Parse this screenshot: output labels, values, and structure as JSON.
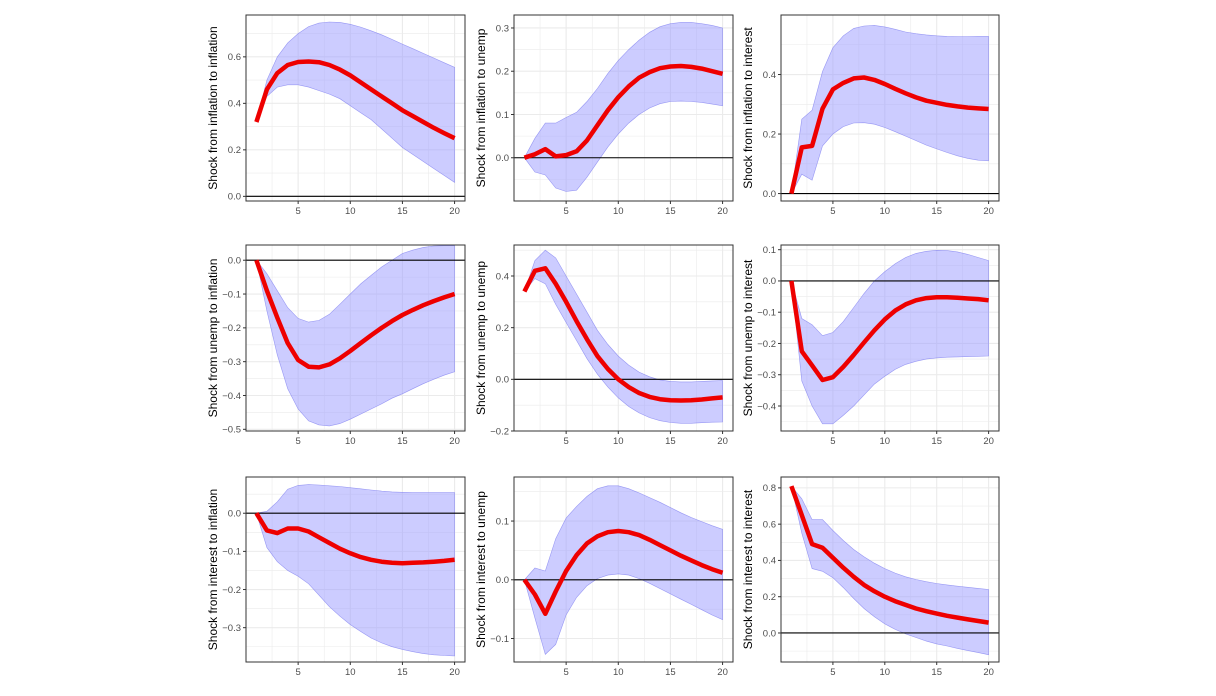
{
  "colors": {
    "line": "#ee0000",
    "band_fill": "#9999ff",
    "band_stroke": "#7777ee",
    "zero_line": "#000000",
    "grid": "#ebebeb",
    "frame": "#333333"
  },
  "chart_data": [
    {
      "type": "line",
      "title": "",
      "xlabel": "",
      "ylabel": "Shock from  inflation  to inflation",
      "xlim": [
        0,
        21
      ],
      "ylim": [
        -0.02,
        0.78
      ],
      "xticks": [
        5,
        10,
        15,
        20
      ],
      "yticks": [
        0.0,
        0.2,
        0.4,
        0.6
      ],
      "ytick_labels": [
        "0.0",
        "0.2",
        "0.4",
        "0.6"
      ],
      "x": [
        1,
        2,
        3,
        4,
        5,
        6,
        7,
        8,
        9,
        10,
        11,
        12,
        13,
        14,
        15,
        16,
        17,
        18,
        19,
        20
      ],
      "series": [
        {
          "name": "irf",
          "values": [
            0.32,
            0.46,
            0.53,
            0.565,
            0.578,
            0.58,
            0.577,
            0.565,
            0.545,
            0.52,
            0.49,
            0.46,
            0.43,
            0.4,
            0.37,
            0.345,
            0.32,
            0.295,
            0.272,
            0.25
          ]
        },
        {
          "name": "upper",
          "values": [
            0.32,
            0.5,
            0.6,
            0.66,
            0.7,
            0.73,
            0.745,
            0.75,
            0.748,
            0.74,
            0.728,
            0.712,
            0.695,
            0.675,
            0.655,
            0.635,
            0.615,
            0.595,
            0.575,
            0.555
          ]
        },
        {
          "name": "lower",
          "values": [
            0.32,
            0.43,
            0.47,
            0.48,
            0.48,
            0.47,
            0.455,
            0.44,
            0.42,
            0.39,
            0.36,
            0.33,
            0.29,
            0.25,
            0.21,
            0.18,
            0.15,
            0.12,
            0.09,
            0.06
          ]
        }
      ]
    },
    {
      "type": "line",
      "xlabel": "",
      "ylabel": "Shock from  inflation  to unemp",
      "xlim": [
        0,
        21
      ],
      "ylim": [
        -0.1,
        0.33
      ],
      "xticks": [
        5,
        10,
        15,
        20
      ],
      "yticks": [
        0.0,
        0.1,
        0.2,
        0.3
      ],
      "ytick_labels": [
        "0.0",
        "0.1",
        "0.2",
        "0.3"
      ],
      "x": [
        1,
        2,
        3,
        4,
        5,
        6,
        7,
        8,
        9,
        10,
        11,
        12,
        13,
        14,
        15,
        16,
        17,
        18,
        19,
        20
      ],
      "series": [
        {
          "name": "irf",
          "values": [
            0.0,
            0.008,
            0.02,
            0.003,
            0.006,
            0.015,
            0.04,
            0.075,
            0.11,
            0.14,
            0.165,
            0.185,
            0.198,
            0.207,
            0.211,
            0.212,
            0.21,
            0.206,
            0.2,
            0.194
          ]
        },
        {
          "name": "upper",
          "values": [
            0.0,
            0.045,
            0.08,
            0.08,
            0.093,
            0.105,
            0.13,
            0.16,
            0.195,
            0.225,
            0.25,
            0.272,
            0.29,
            0.303,
            0.31,
            0.313,
            0.313,
            0.31,
            0.306,
            0.3
          ]
        },
        {
          "name": "lower",
          "values": [
            0.0,
            -0.033,
            -0.04,
            -0.07,
            -0.078,
            -0.075,
            -0.045,
            -0.01,
            0.025,
            0.055,
            0.08,
            0.1,
            0.115,
            0.125,
            0.13,
            0.131,
            0.13,
            0.128,
            0.124,
            0.12
          ]
        }
      ]
    },
    {
      "type": "line",
      "xlabel": "",
      "ylabel": "Shock from  inflation  to interest",
      "xlim": [
        0,
        21
      ],
      "ylim": [
        -0.025,
        0.6
      ],
      "xticks": [
        5,
        10,
        15,
        20
      ],
      "yticks": [
        0.0,
        0.2,
        0.4
      ],
      "ytick_labels": [
        "0.0",
        "0.2",
        "0.4"
      ],
      "x": [
        1,
        2,
        3,
        4,
        5,
        6,
        7,
        8,
        9,
        10,
        11,
        12,
        13,
        14,
        15,
        16,
        17,
        18,
        19,
        20
      ],
      "series": [
        {
          "name": "irf",
          "values": [
            0.0,
            0.155,
            0.16,
            0.285,
            0.35,
            0.372,
            0.387,
            0.39,
            0.382,
            0.368,
            0.352,
            0.337,
            0.323,
            0.312,
            0.305,
            0.298,
            0.293,
            0.289,
            0.286,
            0.284
          ]
        },
        {
          "name": "upper",
          "values": [
            0.0,
            0.25,
            0.28,
            0.41,
            0.49,
            0.53,
            0.555,
            0.563,
            0.565,
            0.56,
            0.552,
            0.543,
            0.537,
            0.533,
            0.53,
            0.528,
            0.527,
            0.527,
            0.528,
            0.528
          ]
        },
        {
          "name": "lower",
          "values": [
            0.0,
            0.065,
            0.045,
            0.16,
            0.2,
            0.225,
            0.237,
            0.238,
            0.233,
            0.222,
            0.208,
            0.193,
            0.178,
            0.163,
            0.15,
            0.138,
            0.127,
            0.118,
            0.112,
            0.11
          ]
        }
      ]
    },
    {
      "type": "line",
      "xlabel": "",
      "ylabel": "Shock from  unemp  to inflation",
      "xlim": [
        0,
        21
      ],
      "ylim": [
        -0.505,
        0.045
      ],
      "xticks": [
        5,
        10,
        15,
        20
      ],
      "yticks": [
        -0.5,
        -0.4,
        -0.3,
        -0.2,
        -0.1,
        0.0
      ],
      "ytick_labels": [
        "-0.5",
        "-0.4",
        "-0.3",
        "-0.2",
        "-0.1",
        "0.0"
      ],
      "x": [
        1,
        2,
        3,
        4,
        5,
        6,
        7,
        8,
        9,
        10,
        11,
        12,
        13,
        14,
        15,
        16,
        17,
        18,
        19,
        20
      ],
      "series": [
        {
          "name": "irf",
          "values": [
            0.0,
            -0.09,
            -0.17,
            -0.245,
            -0.295,
            -0.315,
            -0.317,
            -0.308,
            -0.29,
            -0.268,
            -0.245,
            -0.222,
            -0.2,
            -0.18,
            -0.162,
            -0.147,
            -0.133,
            -0.121,
            -0.11,
            -0.1
          ]
        },
        {
          "name": "upper",
          "values": [
            0.0,
            -0.04,
            -0.09,
            -0.14,
            -0.172,
            -0.183,
            -0.178,
            -0.16,
            -0.13,
            -0.1,
            -0.07,
            -0.045,
            -0.02,
            0.0,
            0.02,
            0.03,
            0.038,
            0.042,
            0.043,
            0.043
          ]
        },
        {
          "name": "lower",
          "values": [
            0.0,
            -0.15,
            -0.28,
            -0.38,
            -0.44,
            -0.475,
            -0.487,
            -0.49,
            -0.483,
            -0.47,
            -0.455,
            -0.44,
            -0.425,
            -0.408,
            -0.395,
            -0.38,
            -0.365,
            -0.352,
            -0.34,
            -0.33
          ]
        }
      ]
    },
    {
      "type": "line",
      "xlabel": "",
      "ylabel": "Shock from  unemp  to unemp",
      "xlim": [
        0,
        21
      ],
      "ylim": [
        -0.2,
        0.52
      ],
      "xticks": [
        5,
        10,
        15,
        20
      ],
      "yticks": [
        -0.2,
        0.0,
        0.2,
        0.4
      ],
      "ytick_labels": [
        "-0.2",
        "0.0",
        "0.2",
        "0.4"
      ],
      "x": [
        1,
        2,
        3,
        4,
        5,
        6,
        7,
        8,
        9,
        10,
        11,
        12,
        13,
        14,
        15,
        16,
        17,
        18,
        19,
        20
      ],
      "series": [
        {
          "name": "irf",
          "values": [
            0.34,
            0.42,
            0.43,
            0.37,
            0.3,
            0.225,
            0.155,
            0.09,
            0.04,
            0.0,
            -0.03,
            -0.053,
            -0.068,
            -0.077,
            -0.081,
            -0.082,
            -0.081,
            -0.078,
            -0.074,
            -0.07
          ]
        },
        {
          "name": "upper",
          "values": [
            0.34,
            0.46,
            0.5,
            0.47,
            0.4,
            0.33,
            0.26,
            0.19,
            0.135,
            0.09,
            0.055,
            0.028,
            0.01,
            -0.002,
            -0.008,
            -0.01,
            -0.01,
            -0.008,
            -0.006,
            -0.005
          ]
        },
        {
          "name": "lower",
          "values": [
            0.34,
            0.39,
            0.37,
            0.29,
            0.22,
            0.15,
            0.08,
            0.02,
            -0.03,
            -0.072,
            -0.105,
            -0.13,
            -0.148,
            -0.16,
            -0.167,
            -0.17,
            -0.17,
            -0.168,
            -0.166,
            -0.165
          ]
        }
      ]
    },
    {
      "type": "line",
      "xlabel": "",
      "ylabel": "Shock from  unemp  to interest",
      "xlim": [
        0,
        21
      ],
      "ylim": [
        -0.48,
        0.115
      ],
      "xticks": [
        5,
        10,
        15,
        20
      ],
      "yticks": [
        -0.4,
        -0.3,
        -0.2,
        -0.1,
        0.0,
        0.1
      ],
      "ytick_labels": [
        "-0.4",
        "-0.3",
        "-0.2",
        "-0.1",
        "0.0",
        "0.1"
      ],
      "x": [
        1,
        2,
        3,
        4,
        5,
        6,
        7,
        8,
        9,
        10,
        11,
        12,
        13,
        14,
        15,
        16,
        17,
        18,
        19,
        20
      ],
      "series": [
        {
          "name": "irf",
          "values": [
            0.0,
            -0.225,
            -0.27,
            -0.317,
            -0.308,
            -0.275,
            -0.237,
            -0.197,
            -0.158,
            -0.123,
            -0.095,
            -0.075,
            -0.062,
            -0.055,
            -0.052,
            -0.052,
            -0.054,
            -0.056,
            -0.058,
            -0.062
          ]
        },
        {
          "name": "upper",
          "values": [
            0.0,
            -0.12,
            -0.14,
            -0.175,
            -0.165,
            -0.13,
            -0.085,
            -0.04,
            0.0,
            0.03,
            0.055,
            0.075,
            0.088,
            0.095,
            0.098,
            0.097,
            0.093,
            0.085,
            0.075,
            0.065
          ]
        },
        {
          "name": "lower",
          "values": [
            0.0,
            -0.32,
            -0.4,
            -0.457,
            -0.457,
            -0.43,
            -0.4,
            -0.365,
            -0.33,
            -0.305,
            -0.283,
            -0.267,
            -0.257,
            -0.25,
            -0.246,
            -0.244,
            -0.243,
            -0.242,
            -0.241,
            -0.24
          ]
        }
      ]
    },
    {
      "type": "line",
      "xlabel": "",
      "ylabel": "Shock from  interest  to inflation",
      "xlim": [
        0,
        21
      ],
      "ylim": [
        -0.39,
        0.095
      ],
      "xticks": [
        5,
        10,
        15,
        20
      ],
      "yticks": [
        -0.3,
        -0.2,
        -0.1,
        0.0
      ],
      "ytick_labels": [
        "-0.3",
        "-0.2",
        "-0.1",
        "0.0"
      ],
      "x": [
        1,
        2,
        3,
        4,
        5,
        6,
        7,
        8,
        9,
        10,
        11,
        12,
        13,
        14,
        15,
        16,
        17,
        18,
        19,
        20
      ],
      "series": [
        {
          "name": "irf",
          "values": [
            0.0,
            -0.045,
            -0.052,
            -0.04,
            -0.04,
            -0.048,
            -0.063,
            -0.078,
            -0.093,
            -0.105,
            -0.115,
            -0.122,
            -0.127,
            -0.13,
            -0.131,
            -0.13,
            -0.129,
            -0.127,
            -0.125,
            -0.122
          ]
        },
        {
          "name": "upper",
          "values": [
            0.0,
            0.005,
            0.03,
            0.063,
            0.073,
            0.075,
            0.074,
            0.072,
            0.07,
            0.067,
            0.064,
            0.061,
            0.058,
            0.056,
            0.055,
            0.054,
            0.054,
            0.054,
            0.054,
            0.054
          ]
        },
        {
          "name": "lower",
          "values": [
            0.0,
            -0.09,
            -0.127,
            -0.15,
            -0.165,
            -0.185,
            -0.215,
            -0.245,
            -0.27,
            -0.292,
            -0.31,
            -0.327,
            -0.34,
            -0.35,
            -0.357,
            -0.363,
            -0.368,
            -0.371,
            -0.373,
            -0.374
          ]
        }
      ]
    },
    {
      "type": "line",
      "xlabel": "",
      "ylabel": "Shock from  interest  to unemp",
      "xlim": [
        0,
        21
      ],
      "ylim": [
        -0.14,
        0.175
      ],
      "xticks": [
        5,
        10,
        15,
        20
      ],
      "yticks": [
        -0.1,
        0.0,
        0.1
      ],
      "ytick_labels": [
        "-0.1",
        "0.0",
        "0.1"
      ],
      "x": [
        1,
        2,
        3,
        4,
        5,
        6,
        7,
        8,
        9,
        10,
        11,
        12,
        13,
        14,
        15,
        16,
        17,
        18,
        19,
        20
      ],
      "series": [
        {
          "name": "irf",
          "values": [
            0.0,
            -0.025,
            -0.058,
            -0.02,
            0.015,
            0.042,
            0.062,
            0.074,
            0.081,
            0.083,
            0.081,
            0.076,
            0.068,
            0.059,
            0.05,
            0.041,
            0.033,
            0.025,
            0.018,
            0.012
          ]
        },
        {
          "name": "upper",
          "values": [
            0.0,
            0.02,
            0.015,
            0.07,
            0.105,
            0.125,
            0.142,
            0.155,
            0.16,
            0.16,
            0.155,
            0.148,
            0.14,
            0.132,
            0.123,
            0.114,
            0.106,
            0.099,
            0.092,
            0.086
          ]
        },
        {
          "name": "lower",
          "values": [
            0.0,
            -0.065,
            -0.127,
            -0.11,
            -0.06,
            -0.03,
            -0.01,
            0.002,
            0.008,
            0.01,
            0.008,
            0.002,
            -0.006,
            -0.015,
            -0.024,
            -0.033,
            -0.042,
            -0.051,
            -0.06,
            -0.068
          ]
        }
      ]
    },
    {
      "type": "line",
      "xlabel": "",
      "ylabel": "Shock from  interest  to interest",
      "xlim": [
        0,
        21
      ],
      "ylim": [
        -0.16,
        0.86
      ],
      "xticks": [
        5,
        10,
        15,
        20
      ],
      "yticks": [
        0.0,
        0.2,
        0.4,
        0.6,
        0.8
      ],
      "ytick_labels": [
        "0.0",
        "0.2",
        "0.4",
        "0.6",
        "0.8"
      ],
      "x": [
        1,
        2,
        3,
        4,
        5,
        6,
        7,
        8,
        9,
        10,
        11,
        12,
        13,
        14,
        15,
        16,
        17,
        18,
        19,
        20
      ],
      "series": [
        {
          "name": "irf",
          "values": [
            0.81,
            0.65,
            0.49,
            0.47,
            0.415,
            0.36,
            0.31,
            0.265,
            0.23,
            0.2,
            0.175,
            0.155,
            0.135,
            0.12,
            0.107,
            0.095,
            0.085,
            0.075,
            0.066,
            0.057
          ]
        },
        {
          "name": "upper",
          "values": [
            0.81,
            0.74,
            0.625,
            0.625,
            0.565,
            0.51,
            0.46,
            0.42,
            0.385,
            0.355,
            0.33,
            0.31,
            0.295,
            0.283,
            0.273,
            0.265,
            0.258,
            0.252,
            0.246,
            0.24
          ]
        },
        {
          "name": "lower",
          "values": [
            0.81,
            0.55,
            0.355,
            0.34,
            0.305,
            0.25,
            0.19,
            0.135,
            0.09,
            0.05,
            0.02,
            -0.005,
            -0.025,
            -0.045,
            -0.06,
            -0.072,
            -0.085,
            -0.097,
            -0.108,
            -0.12
          ]
        }
      ]
    }
  ]
}
